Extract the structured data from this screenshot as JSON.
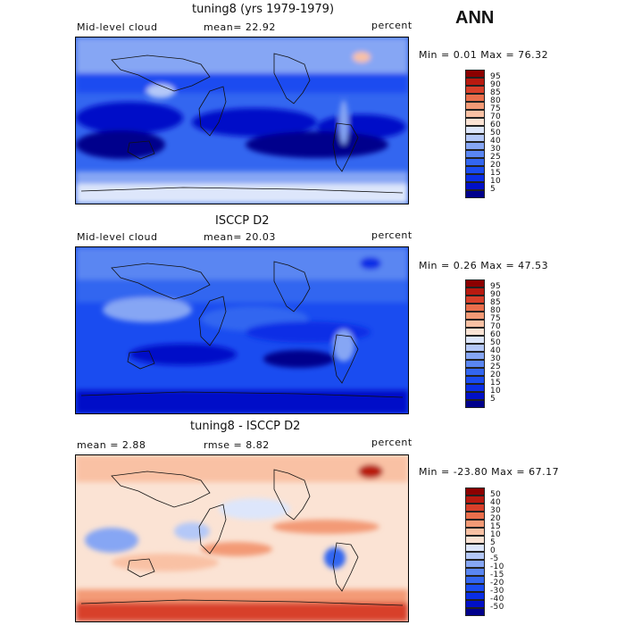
{
  "season": "ANN",
  "panels": [
    {
      "title": "tuning8 (yrs 1979-1979)",
      "left_label": "Mid-level cloud",
      "mid_label": "mean=  22.92",
      "right_label": "percent",
      "minmax": "Min =   0.01 Max =  76.32"
    },
    {
      "title": "ISCCP D2",
      "left_label": "Mid-level cloud",
      "mid_label": "mean=  20.03",
      "right_label": "percent",
      "minmax": "Min =   0.26 Max =  47.53"
    },
    {
      "title": "tuning8 - ISCCP D2",
      "left_label": "mean =   2.88",
      "mid_label": "rmse =   8.82",
      "right_label": "percent",
      "minmax": "Min = -23.80 Max =  67.17"
    }
  ],
  "chart_data": [
    {
      "type": "heatmap",
      "title": "tuning8 (yrs 1979-1979)",
      "variable": "Mid-level cloud",
      "units": "percent",
      "mean": 22.92,
      "min": 0.01,
      "max": 76.32,
      "colorbar_levels": [
        5,
        10,
        15,
        20,
        25,
        30,
        40,
        50,
        60,
        70,
        75,
        80,
        85,
        90,
        95
      ],
      "colorbar_colors": [
        "#00008c",
        "#0010c8",
        "#0a2ee6",
        "#1a4cf0",
        "#3366f0",
        "#5a86f2",
        "#86a6f4",
        "#b4c8f8",
        "#dde6fb",
        "#fbe3d4",
        "#f9c1a4",
        "#f39a76",
        "#ea6f4c",
        "#d8402a",
        "#b81a10",
        "#8c0000"
      ]
    },
    {
      "type": "heatmap",
      "title": "ISCCP D2",
      "variable": "Mid-level cloud",
      "units": "percent",
      "mean": 20.03,
      "min": 0.26,
      "max": 47.53,
      "colorbar_levels": [
        5,
        10,
        15,
        20,
        25,
        30,
        40,
        50,
        60,
        70,
        75,
        80,
        85,
        90,
        95
      ],
      "colorbar_colors": [
        "#00008c",
        "#0010c8",
        "#0a2ee6",
        "#1a4cf0",
        "#3366f0",
        "#5a86f2",
        "#86a6f4",
        "#b4c8f8",
        "#dde6fb",
        "#fbe3d4",
        "#f9c1a4",
        "#f39a76",
        "#ea6f4c",
        "#d8402a",
        "#b81a10",
        "#8c0000"
      ]
    },
    {
      "type": "heatmap",
      "title": "tuning8 - ISCCP D2",
      "units": "percent",
      "mean": 2.88,
      "rmse": 8.82,
      "min": -23.8,
      "max": 67.17,
      "colorbar_levels": [
        -50,
        -40,
        -30,
        -20,
        -15,
        -10,
        -5,
        0,
        5,
        10,
        15,
        20,
        30,
        40,
        50
      ],
      "colorbar_colors": [
        "#00008c",
        "#0010c8",
        "#0a2ee6",
        "#1a4cf0",
        "#3366f0",
        "#5a86f2",
        "#86a6f4",
        "#b4c8f8",
        "#dde6fb",
        "#fbe3d4",
        "#f9c1a4",
        "#f39a76",
        "#ea6f4c",
        "#d8402a",
        "#b81a10",
        "#8c0000"
      ]
    }
  ]
}
